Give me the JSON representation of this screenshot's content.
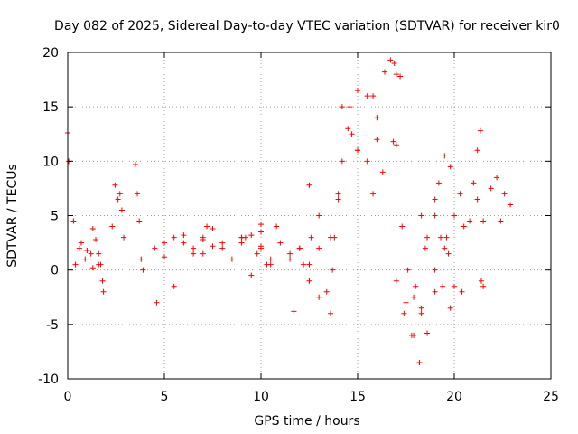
{
  "chart_data": {
    "type": "scatter",
    "title": "Day 082 of 2025, Sidereal Day-to-day VTEC variation (SDTVAR) for receiver kir0",
    "xlabel": "GPS time / hours",
    "ylabel": "SDTVAR / TECUs",
    "xlim": [
      0,
      25
    ],
    "ylim": [
      -10,
      20
    ],
    "x_ticks": [
      0,
      5,
      10,
      15,
      20,
      25
    ],
    "y_ticks": [
      -10,
      -5,
      0,
      5,
      10,
      15,
      20
    ],
    "x_tick_labels": [
      "0",
      "5",
      "10",
      "15",
      "20",
      "25"
    ],
    "y_tick_labels": [
      "-10",
      "-5",
      "0",
      "5",
      "10",
      "15",
      "20"
    ],
    "grid": true,
    "marker": "plus",
    "color": "#ff0000",
    "tracks": [
      {
        "x": [
          0.0,
          0.05
        ],
        "y": [
          12.6,
          10.0
        ]
      },
      {
        "x": [
          0.3,
          0.6,
          0.9,
          1.2
        ],
        "y": [
          4.5,
          2.0,
          1.0,
          1.5
        ]
      },
      {
        "x": [
          0.4,
          0.7,
          1.0,
          1.3,
          1.6
        ],
        "y": [
          0.5,
          2.5,
          1.8,
          0.2,
          0.5
        ]
      },
      {
        "x": [
          1.3,
          1.45,
          1.6
        ],
        "y": [
          3.8,
          2.8,
          1.5
        ]
      },
      {
        "x": [
          1.7,
          1.8,
          1.85
        ],
        "y": [
          0.5,
          -1.0,
          -2.0
        ]
      },
      {
        "x": [
          2.3,
          2.45,
          2.6
        ],
        "y": [
          4.0,
          7.8,
          6.5
        ]
      },
      {
        "x": [
          2.7,
          2.8,
          2.9
        ],
        "y": [
          7.0,
          5.5,
          3.0
        ]
      },
      {
        "x": [
          3.5,
          3.6,
          3.7
        ],
        "y": [
          9.7,
          7.0,
          4.5
        ]
      },
      {
        "x": [
          3.8,
          5.0,
          6.0,
          7.0
        ],
        "y": [
          1.0,
          2.5,
          3.2,
          2.8
        ]
      },
      {
        "x": [
          3.9,
          5.0,
          6.0,
          7.0
        ],
        "y": [
          0.0,
          1.2,
          2.5,
          1.5
        ]
      },
      {
        "x": [
          4.5,
          5.5,
          6.5,
          7.5
        ],
        "y": [
          2.0,
          3.0,
          2.0,
          3.8
        ]
      },
      {
        "x": [
          4.6,
          5.5,
          6.5,
          7.2
        ],
        "y": [
          -3.0,
          -1.5,
          1.5,
          4.0
        ]
      },
      {
        "x": [
          7.0,
          8.0,
          9.0,
          10.0
        ],
        "y": [
          3.0,
          2.5,
          3.0,
          2.0
        ]
      },
      {
        "x": [
          7.5,
          8.5,
          9.5,
          10.5
        ],
        "y": [
          2.2,
          1.0,
          -0.5,
          0.5
        ]
      },
      {
        "x": [
          8.0,
          9.0,
          10.0,
          10.8
        ],
        "y": [
          2.0,
          3.0,
          2.2,
          4.0
        ]
      },
      {
        "x": [
          9.0,
          9.5,
          10.0
        ],
        "y": [
          2.5,
          3.2,
          4.2
        ]
      },
      {
        "x": [
          9.2,
          9.8,
          10.3
        ],
        "y": [
          3.0,
          1.5,
          0.5
        ]
      },
      {
        "x": [
          10.0,
          10.5,
          11.5,
          12.5
        ],
        "y": [
          3.5,
          1.0,
          1.5,
          0.5
        ]
      },
      {
        "x": [
          11.0,
          12.0,
          13.0
        ],
        "y": [
          2.5,
          2.0,
          2.0
        ]
      },
      {
        "x": [
          11.5,
          12.0,
          12.5
        ],
        "y": [
          1.0,
          2.0,
          7.8
        ]
      },
      {
        "x": [
          11.7,
          12.2,
          12.6
        ],
        "y": [
          -3.8,
          0.5,
          3.0
        ]
      },
      {
        "x": [
          12.5,
          13.0,
          13.6
        ],
        "y": [
          -1.0,
          -2.5,
          -4.0
        ]
      },
      {
        "x": [
          13.0,
          13.6,
          14.0
        ],
        "y": [
          5.0,
          3.0,
          6.5
        ]
      },
      {
        "x": [
          13.4,
          13.7,
          14.2
        ],
        "y": [
          -2.0,
          0.0,
          10.0
        ]
      },
      {
        "x": [
          13.8,
          14.2,
          14.7
        ],
        "y": [
          3.0,
          15.0,
          12.5
        ]
      },
      {
        "x": [
          14.0,
          14.5,
          15.0
        ],
        "y": [
          7.0,
          13.0,
          11.0
        ]
      },
      {
        "x": [
          14.6,
          15.0,
          15.5,
          16.0
        ],
        "y": [
          15.0,
          16.5,
          16.0,
          14.0
        ]
      },
      {
        "x": [
          15.0,
          15.5,
          15.8
        ],
        "y": [
          11.0,
          10.0,
          7.0
        ]
      },
      {
        "x": [
          15.8,
          16.0,
          16.3
        ],
        "y": [
          16.0,
          12.0,
          9.0
        ]
      },
      {
        "x": [
          16.4,
          16.7,
          16.9
        ],
        "y": [
          18.2,
          19.3,
          19.0
        ]
      },
      {
        "x": [
          17.0,
          17.2
        ],
        "y": [
          18.0,
          17.8
        ]
      },
      {
        "x": [
          16.85,
          17.0
        ],
        "y": [
          11.8,
          11.5
        ]
      },
      {
        "x": [
          17.0,
          17.4,
          17.8,
          18.2
        ],
        "y": [
          -1.0,
          -4.0,
          -6.0,
          -8.5
        ]
      },
      {
        "x": [
          17.3,
          17.6,
          17.9
        ],
        "y": [
          4.0,
          0.0,
          -6.0
        ]
      },
      {
        "x": [
          17.5,
          17.9,
          18.3
        ],
        "y": [
          -3.0,
          -2.5,
          -3.5
        ]
      },
      {
        "x": [
          18.0,
          18.3,
          18.6
        ],
        "y": [
          -1.5,
          -4.0,
          -5.8
        ]
      },
      {
        "x": [
          18.3,
          18.6,
          19.0
        ],
        "y": [
          5.0,
          3.0,
          0.0
        ]
      },
      {
        "x": [
          18.5,
          19.0,
          19.5
        ],
        "y": [
          2.0,
          6.5,
          2.0
        ]
      },
      {
        "x": [
          19.0,
          19.4,
          19.8
        ],
        "y": [
          -2.0,
          -1.5,
          -3.5
        ]
      },
      {
        "x": [
          19.0,
          19.3,
          19.7
        ],
        "y": [
          5.0,
          3.0,
          1.5
        ]
      },
      {
        "x": [
          19.2,
          19.5,
          19.8
        ],
        "y": [
          8.0,
          10.5,
          9.5
        ]
      },
      {
        "x": [
          19.6,
          20.0,
          20.4
        ],
        "y": [
          3.0,
          -1.5,
          -2.0
        ]
      },
      {
        "x": [
          20.0,
          20.3,
          20.5
        ],
        "y": [
          5.0,
          7.0,
          4.0
        ]
      },
      {
        "x": [
          20.8,
          21.0,
          21.2
        ],
        "y": [
          4.5,
          8.0,
          6.5
        ]
      },
      {
        "x": [
          21.2,
          21.35
        ],
        "y": [
          11.0,
          12.8
        ]
      },
      {
        "x": [
          21.4,
          21.5
        ],
        "y": [
          -1.0,
          -1.5
        ]
      },
      {
        "x": [
          21.5,
          21.9,
          22.4
        ],
        "y": [
          4.5,
          7.5,
          4.5
        ]
      },
      {
        "x": [
          22.2,
          22.6,
          22.9
        ],
        "y": [
          8.5,
          7.0,
          6.0
        ]
      }
    ]
  }
}
